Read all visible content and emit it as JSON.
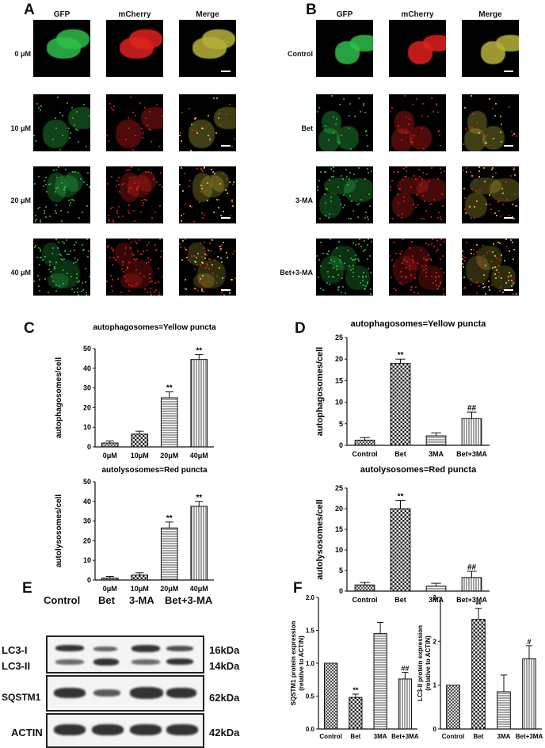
{
  "panel_labels": {
    "a": "A",
    "b": "B",
    "c": "C",
    "d": "D",
    "e": "E",
    "f": "F"
  },
  "micrographs": {
    "columns": [
      "GFP",
      "mCherry",
      "Merge"
    ],
    "A_rows": [
      "0 μM",
      "10 μM",
      "20 μM",
      "40 μM"
    ],
    "B_rows": [
      "Control",
      "Bet",
      "3-MA",
      "Bet+3-MA"
    ],
    "colors": {
      "gfp": "#2fbf4a",
      "mcherry": "#e0221e",
      "merge": "#b8b23a"
    }
  },
  "blot": {
    "lanes": [
      "Control",
      "Bet",
      "3-MA",
      "Bet+3-MA"
    ],
    "rows": [
      "LC3-I",
      "LC3-II",
      "SQSTM1",
      "ACTIN"
    ],
    "sizes": [
      "16kDa",
      "14kDa",
      "62kDa",
      "42kDa"
    ]
  },
  "chart_data": [
    {
      "id": "C1",
      "type": "bar",
      "title": "autophagosomes=Yellow puncta",
      "ylabel": "autophagosomes/cell",
      "categories": [
        "0μM",
        "10μM",
        "20μM",
        "40μM"
      ],
      "values": [
        2,
        6.5,
        25,
        44.5
      ],
      "errors": [
        1,
        1.5,
        3,
        2.5
      ],
      "annotations": [
        "",
        "",
        "**",
        "**"
      ],
      "ylim": [
        0,
        50
      ],
      "yticks": [
        0,
        10,
        20,
        30,
        40,
        50
      ],
      "patterns": [
        "cross",
        "check",
        "hline",
        "vline"
      ]
    },
    {
      "id": "C2",
      "type": "bar",
      "title": "autolysosomes=Red puncta",
      "ylabel": "autolysosomes/cell",
      "categories": [
        "0μM",
        "10μM",
        "20μM",
        "40μM"
      ],
      "values": [
        1,
        2.5,
        26.5,
        37.5
      ],
      "errors": [
        0.8,
        1.2,
        3,
        2.5
      ],
      "annotations": [
        "",
        "",
        "**",
        "**"
      ],
      "ylim": [
        0,
        50
      ],
      "yticks": [
        0,
        10,
        20,
        30,
        40,
        50
      ],
      "patterns": [
        "cross",
        "check",
        "hline",
        "vline"
      ]
    },
    {
      "id": "D1",
      "type": "bar",
      "title": "autophagosomes=Yellow puncta",
      "ylabel": "autophagosomes/cell",
      "categories": [
        "Control",
        "Bet",
        "3MA",
        "Bet+3MA"
      ],
      "values": [
        1.2,
        19,
        2.2,
        6.2
      ],
      "errors": [
        0.6,
        1,
        0.7,
        1.5
      ],
      "annotations": [
        "",
        "**",
        "",
        "##"
      ],
      "ylim": [
        0,
        25
      ],
      "yticks": [
        0,
        5,
        10,
        15,
        20,
        25
      ],
      "patterns": [
        "cross",
        "check",
        "hline",
        "vline"
      ]
    },
    {
      "id": "D2",
      "type": "bar",
      "title": "autolysosomes=Red puncta",
      "ylabel": "autolysosomes/cell",
      "categories": [
        "Control",
        "Bet",
        "3MA",
        "Bet+3MA"
      ],
      "values": [
        1.5,
        20,
        1.2,
        3.3
      ],
      "errors": [
        0.6,
        2,
        0.7,
        1.5
      ],
      "annotations": [
        "",
        "**",
        "",
        "##"
      ],
      "ylim": [
        0,
        25
      ],
      "yticks": [
        0,
        5,
        10,
        15,
        20,
        25
      ],
      "patterns": [
        "cross",
        "check",
        "hline",
        "vline"
      ]
    },
    {
      "id": "F1",
      "type": "bar",
      "title": "",
      "ylabel": "SQSTM1 protein expression (relative to ACTIN)",
      "ylabel_lines": [
        "SQSTM1 protein expression",
        "(relative to ACTIN)"
      ],
      "categories": [
        "Control",
        "Bet",
        "3MA",
        "Bet+3MA"
      ],
      "values": [
        1,
        0.48,
        1.45,
        0.76
      ],
      "errors": [
        0,
        0.05,
        0.17,
        0.1
      ],
      "annotations": [
        "",
        "**",
        "",
        "##"
      ],
      "ylim": [
        0,
        2
      ],
      "yticks": [
        "0.0",
        "0.5",
        "1.0",
        "1.5",
        "2.0"
      ],
      "patterns": [
        "cross",
        "check",
        "hline",
        "vline"
      ]
    },
    {
      "id": "F2",
      "type": "bar",
      "title": "",
      "ylabel": "LC3-II protein expression (relative to ACTIN)",
      "ylabel_lines": [
        "LC3-II protein expression",
        "(relative to ACTIN)"
      ],
      "categories": [
        "Control",
        "Bet",
        "3MA",
        "Bet+3MA"
      ],
      "values": [
        1,
        2.5,
        0.85,
        1.6
      ],
      "errors": [
        0,
        0.25,
        0.38,
        0.3
      ],
      "annotations": [
        "",
        "**",
        "",
        "#"
      ],
      "ylim": [
        0,
        3
      ],
      "yticks": [
        "0",
        "1",
        "2",
        "3"
      ],
      "patterns": [
        "cross",
        "check",
        "hline",
        "vline"
      ]
    }
  ]
}
